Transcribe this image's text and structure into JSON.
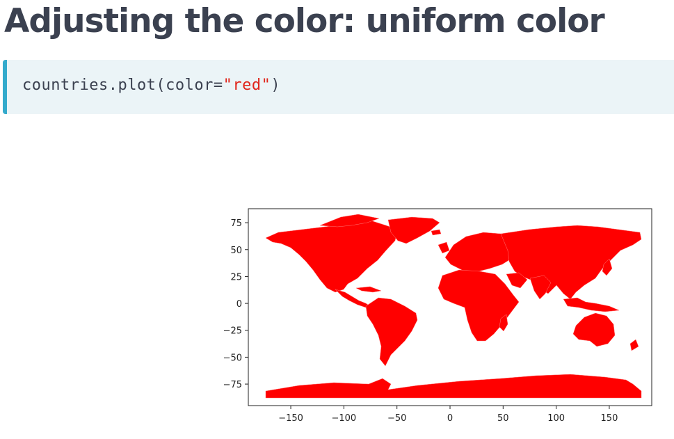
{
  "title": "Adjusting the color: uniform color",
  "code": {
    "prefix": "countries.plot(color=",
    "string_literal": "\"red\"",
    "suffix": ")"
  },
  "colors": {
    "title": "#3b4150",
    "code_background": "#ebf4f7",
    "code_accent_bar": "#33aacc",
    "string_literal": "#e0251b",
    "map_fill": "#ff0000"
  },
  "chart_data": {
    "type": "map",
    "series": [
      {
        "color": "red"
      }
    ],
    "x_ticks": [
      "−150",
      "−100",
      "−50",
      "0",
      "50",
      "100",
      "150"
    ],
    "y_ticks": [
      "75",
      "50",
      "25",
      "0",
      "−25",
      "−50",
      "−75"
    ],
    "xlim": [
      -190,
      190
    ],
    "ylim": [
      -95,
      88
    ],
    "grid": false
  }
}
